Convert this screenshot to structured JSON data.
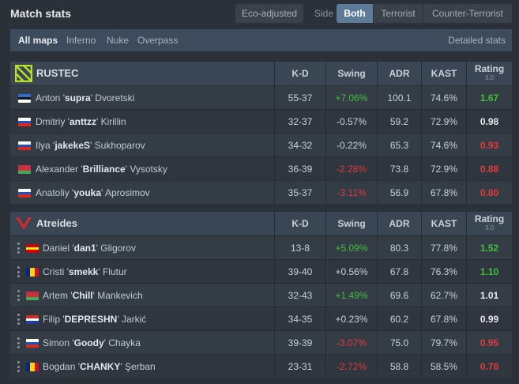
{
  "header": {
    "title": "Match stats",
    "eco_label": "Eco-adjusted",
    "side_label": "Side",
    "side_options": [
      "Both",
      "Terrorist",
      "Counter-Terrorist"
    ]
  },
  "maps": {
    "items": [
      "All maps",
      "Inferno",
      "Nuke",
      "Overpass"
    ],
    "detailed_label": "Detailed stats"
  },
  "columns": {
    "kd": "K-D",
    "swing": "Swing",
    "adr": "ADR",
    "kast": "KAST",
    "rating": "Rating",
    "rating_sub": "3.0"
  },
  "teams": [
    {
      "name": "RUSTEC",
      "logo_color": "#b8e02a",
      "players": [
        {
          "first": "Anton '",
          "nick": "supra",
          "last": "' Dvoretski",
          "flag": "ee",
          "kd": "55-37",
          "swing": "+7.06%",
          "swing_color": "green",
          "adr": "100.1",
          "kast": "74.6%",
          "rating": "1.67",
          "rating_color": "green"
        },
        {
          "first": "Dmitriy '",
          "nick": "anttzz",
          "last": "' Kirillin",
          "flag": "ru",
          "kd": "32-37",
          "swing": "-0.57%",
          "swing_color": "plain",
          "adr": "59.2",
          "kast": "72.9%",
          "rating": "0.98",
          "rating_color": "white"
        },
        {
          "first": "Ilya '",
          "nick": "jakekeS",
          "last": "' Sukhoparov",
          "flag": "ru",
          "kd": "34-32",
          "swing": "-0.22%",
          "swing_color": "plain",
          "adr": "65.3",
          "kast": "74.6%",
          "rating": "0.93",
          "rating_color": "red"
        },
        {
          "first": "Alexander '",
          "nick": "Brilliance",
          "last": "' Vysotsky",
          "flag": "by",
          "kd": "36-39",
          "swing": "-2.28%",
          "swing_color": "red",
          "adr": "73.8",
          "kast": "72.9%",
          "rating": "0.88",
          "rating_color": "red"
        },
        {
          "first": "Anatoliy '",
          "nick": "youka",
          "last": "' Aprosimov",
          "flag": "ru",
          "kd": "35-37",
          "swing": "-3.11%",
          "swing_color": "red",
          "adr": "56.9",
          "kast": "67.8%",
          "rating": "0.80",
          "rating_color": "red"
        }
      ]
    },
    {
      "name": "Atreides",
      "logo_color": "#d42a2a",
      "players": [
        {
          "first": "Daniel '",
          "nick": "dan1",
          "last": "' Gligorov",
          "flag": "mk",
          "kd": "13-8",
          "swing": "+5.09%",
          "swing_color": "green",
          "adr": "80.3",
          "kast": "77.8%",
          "rating": "1.52",
          "rating_color": "green"
        },
        {
          "first": "Cristi '",
          "nick": "smekk",
          "last": "' Flutur",
          "flag": "ro",
          "kd": "39-40",
          "swing": "+0.56%",
          "swing_color": "plain",
          "adr": "67.8",
          "kast": "76.3%",
          "rating": "1.10",
          "rating_color": "green"
        },
        {
          "first": "Artem '",
          "nick": "Chill",
          "last": "' Mankevich",
          "flag": "by",
          "kd": "32-43",
          "swing": "+1.49%",
          "swing_color": "green",
          "adr": "69.6",
          "kast": "62.7%",
          "rating": "1.01",
          "rating_color": "white"
        },
        {
          "first": "Filip '",
          "nick": "DEPRESHN",
          "last": "' Jarkić",
          "flag": "hr",
          "kd": "34-35",
          "swing": "+0.23%",
          "swing_color": "plain",
          "adr": "60.2",
          "kast": "67.8%",
          "rating": "0.99",
          "rating_color": "white"
        },
        {
          "first": "Simon '",
          "nick": "Goody",
          "last": "' Chayka",
          "flag": "ru",
          "kd": "39-39",
          "swing": "-3.07%",
          "swing_color": "red",
          "adr": "75.0",
          "kast": "79.7%",
          "rating": "0.95",
          "rating_color": "red"
        },
        {
          "first": "Bogdan '",
          "nick": "CHANKY",
          "last": "' Şerban",
          "flag": "ro",
          "kd": "23-31",
          "swing": "-2.72%",
          "swing_color": "red",
          "adr": "58.8",
          "kast": "58.5%",
          "rating": "0.78",
          "rating_color": "red"
        }
      ]
    }
  ]
}
